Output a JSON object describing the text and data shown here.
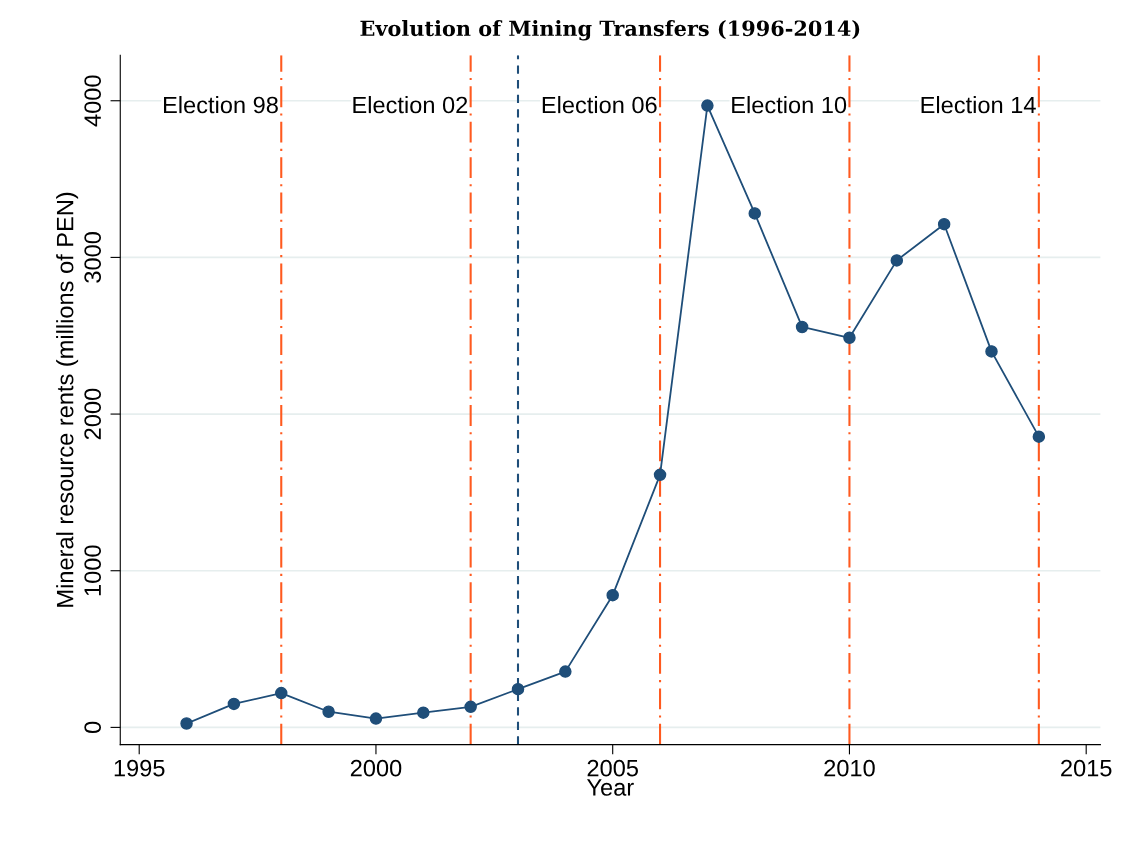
{
  "chart_data": {
    "type": "line",
    "title": "Evolution of Mining Transfers (1996-2014)",
    "xlabel": "Year",
    "ylabel": "Mineral resource rents (millions of PEN)",
    "x": [
      1996,
      1997,
      1998,
      1999,
      2000,
      2001,
      2002,
      2003,
      2004,
      2005,
      2006,
      2007,
      2008,
      2009,
      2010,
      2011,
      2012,
      2013,
      2014
    ],
    "series": [
      {
        "color": "#1f4e79",
        "values": [
          25,
          150,
          219,
          100,
          56,
          94,
          131,
          244,
          356,
          844,
          1612,
          3969,
          3281,
          2556,
          2487,
          2981,
          3212,
          2400,
          1856
        ]
      }
    ],
    "marker": "circle",
    "line_style": "solid",
    "grid": "y",
    "legend": false,
    "xlim": [
      1994.6,
      2015.3
    ],
    "ylim": [
      -110,
      4290
    ],
    "xticks": [
      1995,
      2000,
      2005,
      2010,
      2015
    ],
    "yticks": [
      0,
      1000,
      2000,
      3000,
      4000
    ],
    "ref_lines": [
      {
        "axis": "x",
        "value": 1998,
        "label": "Election 98",
        "color": "#ff5a1f",
        "line_style": "dashdot"
      },
      {
        "axis": "x",
        "value": 2002,
        "label": "Election 02",
        "color": "#ff5a1f",
        "line_style": "dashdot"
      },
      {
        "axis": "x",
        "value": 2003,
        "color": "#1f4e79",
        "line_style": "dashed"
      },
      {
        "axis": "x",
        "value": 2006,
        "label": "Election 06",
        "color": "#ff5a1f",
        "line_style": "dashdot"
      },
      {
        "axis": "x",
        "value": 2010,
        "label": "Election 10",
        "color": "#ff5a1f",
        "line_style": "dashdot"
      },
      {
        "axis": "x",
        "value": 2014,
        "label": "Election 14",
        "color": "#ff5a1f",
        "line_style": "dashdot"
      }
    ]
  }
}
